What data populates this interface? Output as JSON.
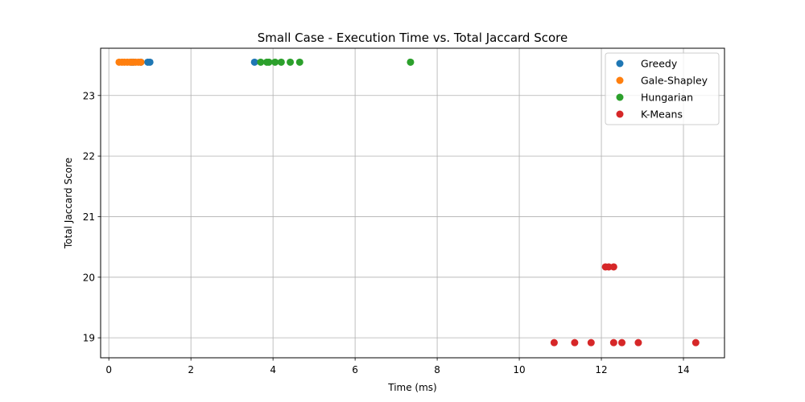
{
  "chart_data": {
    "type": "scatter",
    "title": "Small Case - Execution Time vs. Total Jaccard Score",
    "xlabel": "Time (ms)",
    "ylabel": "Total Jaccard Score",
    "xlim": [
      -0.2,
      15
    ],
    "ylim": [
      18.67,
      23.78
    ],
    "xticks": [
      0,
      2,
      4,
      6,
      8,
      10,
      12,
      14
    ],
    "xtick_labels": [
      "0",
      "2",
      "4",
      "6",
      "8",
      "10",
      "12",
      "14"
    ],
    "yticks": [
      19,
      20,
      21,
      22,
      23
    ],
    "ytick_labels": [
      "19",
      "20",
      "21",
      "22",
      "23"
    ],
    "grid": true,
    "legend_position": "top-right",
    "series": [
      {
        "name": "Greedy",
        "color": "#1f77b4",
        "points": [
          {
            "x": 0.55,
            "y": 23.55
          },
          {
            "x": 0.6,
            "y": 23.55
          },
          {
            "x": 0.78,
            "y": 23.55
          },
          {
            "x": 0.95,
            "y": 23.55
          },
          {
            "x": 1.0,
            "y": 23.55
          },
          {
            "x": 3.55,
            "y": 23.55
          }
        ]
      },
      {
        "name": "Gale-Shapley",
        "color": "#ff7f0e",
        "points": [
          {
            "x": 0.25,
            "y": 23.55
          },
          {
            "x": 0.32,
            "y": 23.55
          },
          {
            "x": 0.38,
            "y": 23.55
          },
          {
            "x": 0.45,
            "y": 23.55
          },
          {
            "x": 0.52,
            "y": 23.55
          },
          {
            "x": 0.58,
            "y": 23.55
          },
          {
            "x": 0.65,
            "y": 23.55
          },
          {
            "x": 0.72,
            "y": 23.55
          },
          {
            "x": 0.78,
            "y": 23.55
          }
        ]
      },
      {
        "name": "Hungarian",
        "color": "#2ca02c",
        "points": [
          {
            "x": 3.7,
            "y": 23.55
          },
          {
            "x": 3.85,
            "y": 23.55
          },
          {
            "x": 3.9,
            "y": 23.55
          },
          {
            "x": 4.05,
            "y": 23.55
          },
          {
            "x": 4.2,
            "y": 23.55
          },
          {
            "x": 4.42,
            "y": 23.55
          },
          {
            "x": 4.65,
            "y": 23.55
          },
          {
            "x": 7.35,
            "y": 23.55
          }
        ]
      },
      {
        "name": "K-Means",
        "color": "#d62728",
        "points": [
          {
            "x": 12.1,
            "y": 20.17
          },
          {
            "x": 12.18,
            "y": 20.17
          },
          {
            "x": 12.3,
            "y": 20.17
          },
          {
            "x": 10.85,
            "y": 18.92
          },
          {
            "x": 11.35,
            "y": 18.92
          },
          {
            "x": 11.75,
            "y": 18.92
          },
          {
            "x": 12.3,
            "y": 18.92
          },
          {
            "x": 12.5,
            "y": 18.92
          },
          {
            "x": 12.9,
            "y": 18.92
          },
          {
            "x": 14.3,
            "y": 18.92
          }
        ]
      }
    ]
  }
}
